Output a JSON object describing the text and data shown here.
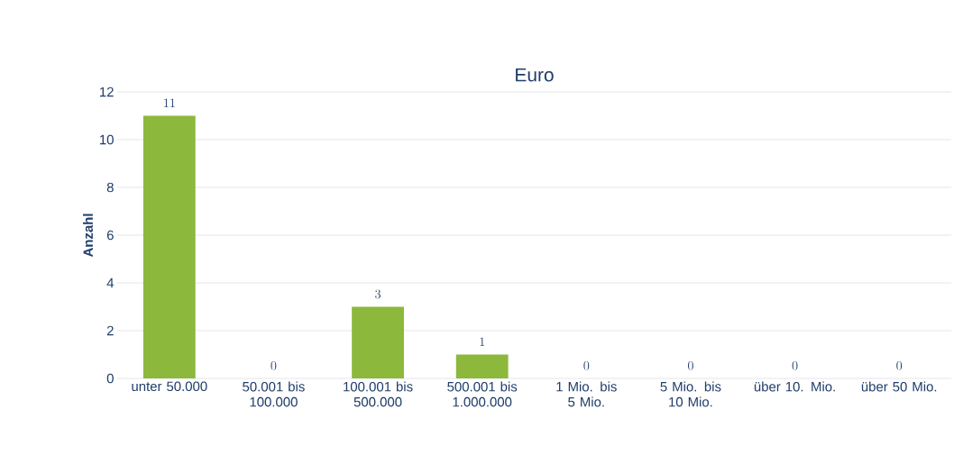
{
  "chart_data": {
    "type": "bar",
    "title": "Euro",
    "ylabel": "Anzahl",
    "categories": [
      "unter 50.000",
      "50.001 bis 100.000",
      "100.001 bis 500.000",
      "500.001 bis 1.000.000",
      "1 Mio. bis 5 Mio.",
      "5 Mio. bis 10 Mio.",
      "über 10. Mio.",
      "über 50 Mio."
    ],
    "values": [
      11,
      0,
      3,
      1,
      0,
      0,
      0,
      0
    ],
    "color": "#8cb83c",
    "ylim": [
      0,
      12
    ],
    "yticks": [
      0,
      2,
      4,
      6,
      8,
      10,
      12
    ],
    "grid": "y",
    "data_labels": true
  }
}
